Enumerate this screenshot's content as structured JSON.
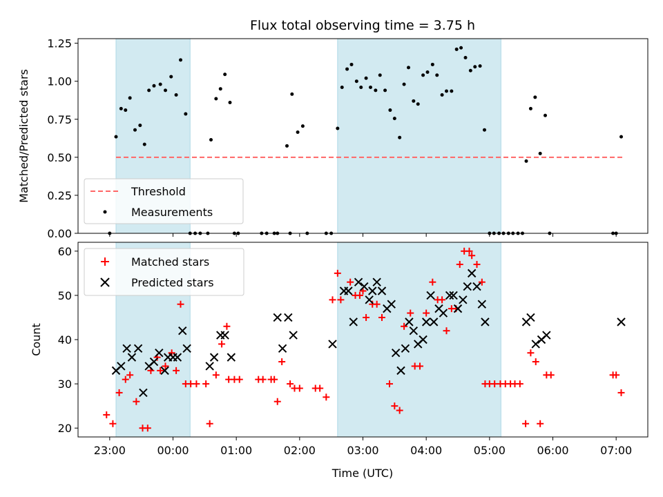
{
  "chart_data": [
    {
      "type": "scatter",
      "title": "Flux total observing time = 3.75 h",
      "xlabel": "",
      "ylabel": "Matched/Predicted stars",
      "x_unit": "hours after 23:00 UTC",
      "xlim": [
        -0.5,
        8.5
      ],
      "ylim": [
        0,
        1.28
      ],
      "yticks": [
        "0.00",
        "0.25",
        "0.50",
        "0.75",
        "1.00",
        "1.25"
      ],
      "yticks_values": [
        0,
        0.25,
        0.5,
        0.75,
        1.0,
        1.25
      ],
      "shaded_intervals": [
        [
          0.1,
          1.27
        ],
        [
          3.6,
          6.18
        ]
      ],
      "shade_color": "#add8e6",
      "threshold": {
        "name": "Threshold",
        "value": 0.5,
        "x_range": [
          0.1,
          8.1
        ],
        "color": "#ff6666"
      },
      "legend": {
        "position": "lower-left",
        "entries": [
          "Threshold",
          "Measurements"
        ]
      },
      "series": [
        {
          "name": "Measurements",
          "color": "#000000",
          "points": [
            [
              0.0,
              0.0
            ],
            [
              0.1,
              0.635
            ],
            [
              0.18,
              0.82
            ],
            [
              0.25,
              0.81
            ],
            [
              0.32,
              0.89
            ],
            [
              0.4,
              0.68
            ],
            [
              0.48,
              0.71
            ],
            [
              0.55,
              0.585
            ],
            [
              0.62,
              0.94
            ],
            [
              0.7,
              0.97
            ],
            [
              0.8,
              0.98
            ],
            [
              0.88,
              0.94
            ],
            [
              0.97,
              1.03
            ],
            [
              1.05,
              0.91
            ],
            [
              1.12,
              1.14
            ],
            [
              1.2,
              0.785
            ],
            [
              1.27,
              0.0
            ],
            [
              1.35,
              0.0
            ],
            [
              1.43,
              0.0
            ],
            [
              1.55,
              0.0
            ],
            [
              1.6,
              0.615
            ],
            [
              1.68,
              0.885
            ],
            [
              1.75,
              0.95
            ],
            [
              1.82,
              1.045
            ],
            [
              1.9,
              0.86
            ],
            [
              1.97,
              0.0
            ],
            [
              2.03,
              0.0
            ],
            [
              2.4,
              0.0
            ],
            [
              2.48,
              0.0
            ],
            [
              2.6,
              0.0
            ],
            [
              2.65,
              0.0
            ],
            [
              2.8,
              0.575
            ],
            [
              2.85,
              0.0
            ],
            [
              2.88,
              0.915
            ],
            [
              2.97,
              0.665
            ],
            [
              3.05,
              0.705
            ],
            [
              3.12,
              0.0
            ],
            [
              3.42,
              0.0
            ],
            [
              3.5,
              0.0
            ],
            [
              3.6,
              0.69
            ],
            [
              3.67,
              0.96
            ],
            [
              3.75,
              1.08
            ],
            [
              3.82,
              1.11
            ],
            [
              3.9,
              1.0
            ],
            [
              3.97,
              0.96
            ],
            [
              4.05,
              1.02
            ],
            [
              4.12,
              0.96
            ],
            [
              4.2,
              0.94
            ],
            [
              4.27,
              1.04
            ],
            [
              4.35,
              0.94
            ],
            [
              4.43,
              0.81
            ],
            [
              4.5,
              0.755
            ],
            [
              4.58,
              0.63
            ],
            [
              4.65,
              0.98
            ],
            [
              4.72,
              1.09
            ],
            [
              4.8,
              0.87
            ],
            [
              4.87,
              0.85
            ],
            [
              4.95,
              1.04
            ],
            [
              5.02,
              1.06
            ],
            [
              5.1,
              1.11
            ],
            [
              5.17,
              1.04
            ],
            [
              5.25,
              0.91
            ],
            [
              5.32,
              0.935
            ],
            [
              5.4,
              0.935
            ],
            [
              5.48,
              1.21
            ],
            [
              5.55,
              1.22
            ],
            [
              5.62,
              1.155
            ],
            [
              5.7,
              1.07
            ],
            [
              5.77,
              1.095
            ],
            [
              5.85,
              1.1
            ],
            [
              5.92,
              0.68
            ],
            [
              6.0,
              0.0
            ],
            [
              6.07,
              0.0
            ],
            [
              6.15,
              0.0
            ],
            [
              6.22,
              0.0
            ],
            [
              6.3,
              0.0
            ],
            [
              6.37,
              0.0
            ],
            [
              6.45,
              0.0
            ],
            [
              6.52,
              0.0
            ],
            [
              6.58,
              0.475
            ],
            [
              6.65,
              0.82
            ],
            [
              6.72,
              0.895
            ],
            [
              6.8,
              0.525
            ],
            [
              6.88,
              0.775
            ],
            [
              6.95,
              0.0
            ],
            [
              7.95,
              0.0
            ],
            [
              8.0,
              0.0
            ],
            [
              8.08,
              0.635
            ]
          ]
        }
      ]
    },
    {
      "type": "scatter",
      "title": "",
      "xlabel": "Time (UTC)",
      "ylabel": "Count",
      "x_unit": "hours after 23:00 UTC",
      "xlim": [
        -0.5,
        8.5
      ],
      "ylim": [
        18,
        62
      ],
      "yticks": [
        "20",
        "30",
        "40",
        "50",
        "60"
      ],
      "yticks_values": [
        20,
        30,
        40,
        50,
        60
      ],
      "xticks": [
        "23:00",
        "00:00",
        "01:00",
        "02:00",
        "03:00",
        "04:00",
        "05:00",
        "06:00",
        "07:00"
      ],
      "xticks_values": [
        0,
        1,
        2,
        3,
        4,
        5,
        6,
        7,
        8
      ],
      "shaded_intervals": [
        [
          0.1,
          1.27
        ],
        [
          3.6,
          6.18
        ]
      ],
      "shade_color": "#add8e6",
      "legend": {
        "position": "upper-left",
        "entries": [
          "Matched stars",
          "Predicted stars"
        ]
      },
      "series": [
        {
          "name": "Matched stars",
          "marker": "plus",
          "color": "#ff0000",
          "points": [
            [
              -0.05,
              23
            ],
            [
              0.05,
              21
            ],
            [
              0.15,
              28
            ],
            [
              0.25,
              31
            ],
            [
              0.32,
              32
            ],
            [
              0.42,
              26
            ],
            [
              0.52,
              20
            ],
            [
              0.6,
              20
            ],
            [
              0.65,
              33
            ],
            [
              0.75,
              36
            ],
            [
              0.8,
              33
            ],
            [
              0.88,
              34
            ],
            [
              0.98,
              37
            ],
            [
              1.05,
              33
            ],
            [
              1.12,
              48
            ],
            [
              1.2,
              30
            ],
            [
              1.28,
              30
            ],
            [
              1.37,
              30
            ],
            [
              1.52,
              30
            ],
            [
              1.58,
              21
            ],
            [
              1.68,
              32
            ],
            [
              1.77,
              39
            ],
            [
              1.85,
              43
            ],
            [
              1.88,
              31
            ],
            [
              1.97,
              31
            ],
            [
              2.05,
              31
            ],
            [
              2.35,
              31
            ],
            [
              2.42,
              31
            ],
            [
              2.55,
              31
            ],
            [
              2.6,
              31
            ],
            [
              2.65,
              26
            ],
            [
              2.72,
              35
            ],
            [
              2.85,
              30
            ],
            [
              2.92,
              29
            ],
            [
              3.0,
              29
            ],
            [
              3.25,
              29
            ],
            [
              3.32,
              29
            ],
            [
              3.42,
              27
            ],
            [
              3.52,
              49
            ],
            [
              3.6,
              55
            ],
            [
              3.65,
              49
            ],
            [
              3.8,
              53
            ],
            [
              3.88,
              50
            ],
            [
              3.95,
              50
            ],
            [
              4.0,
              51
            ],
            [
              4.05,
              45
            ],
            [
              4.15,
              48
            ],
            [
              4.22,
              48
            ],
            [
              4.3,
              45
            ],
            [
              4.42,
              30
            ],
            [
              4.5,
              25
            ],
            [
              4.58,
              24
            ],
            [
              4.65,
              43
            ],
            [
              4.75,
              46
            ],
            [
              4.82,
              34
            ],
            [
              4.9,
              34
            ],
            [
              5.0,
              46
            ],
            [
              5.1,
              53
            ],
            [
              5.18,
              49
            ],
            [
              5.25,
              49
            ],
            [
              5.32,
              42
            ],
            [
              5.4,
              47
            ],
            [
              5.47,
              47
            ],
            [
              5.53,
              57
            ],
            [
              5.6,
              60
            ],
            [
              5.68,
              60
            ],
            [
              5.72,
              59
            ],
            [
              5.8,
              57
            ],
            [
              5.88,
              53
            ],
            [
              5.93,
              30
            ],
            [
              6.0,
              30
            ],
            [
              6.08,
              30
            ],
            [
              6.17,
              30
            ],
            [
              6.25,
              30
            ],
            [
              6.33,
              30
            ],
            [
              6.4,
              30
            ],
            [
              6.48,
              30
            ],
            [
              6.57,
              21
            ],
            [
              6.65,
              37
            ],
            [
              6.73,
              35
            ],
            [
              6.8,
              21
            ],
            [
              6.9,
              32
            ],
            [
              6.97,
              32
            ],
            [
              7.95,
              32
            ],
            [
              8.0,
              32
            ],
            [
              8.08,
              28
            ]
          ]
        },
        {
          "name": "Predicted stars",
          "marker": "x",
          "color": "#000000",
          "points": [
            [
              0.1,
              33
            ],
            [
              0.18,
              34
            ],
            [
              0.27,
              38
            ],
            [
              0.35,
              36
            ],
            [
              0.45,
              38
            ],
            [
              0.53,
              28
            ],
            [
              0.62,
              34
            ],
            [
              0.7,
              35
            ],
            [
              0.78,
              37
            ],
            [
              0.87,
              33
            ],
            [
              0.92,
              36
            ],
            [
              1.0,
              36
            ],
            [
              1.07,
              36
            ],
            [
              1.15,
              42
            ],
            [
              1.22,
              38
            ],
            [
              1.58,
              34
            ],
            [
              1.65,
              36
            ],
            [
              1.75,
              41
            ],
            [
              1.82,
              41
            ],
            [
              1.92,
              36
            ],
            [
              2.65,
              45
            ],
            [
              2.73,
              38
            ],
            [
              2.82,
              45
            ],
            [
              2.9,
              41
            ],
            [
              3.52,
              39
            ],
            [
              3.7,
              51
            ],
            [
              3.77,
              51
            ],
            [
              3.85,
              44
            ],
            [
              3.93,
              53
            ],
            [
              4.02,
              52
            ],
            [
              4.1,
              49
            ],
            [
              4.15,
              51
            ],
            [
              4.22,
              53
            ],
            [
              4.3,
              51
            ],
            [
              4.38,
              47
            ],
            [
              4.45,
              48
            ],
            [
              4.52,
              37
            ],
            [
              4.6,
              33
            ],
            [
              4.67,
              38
            ],
            [
              4.73,
              44
            ],
            [
              4.8,
              42
            ],
            [
              4.87,
              39
            ],
            [
              4.95,
              40
            ],
            [
              5.0,
              44
            ],
            [
              5.07,
              50
            ],
            [
              5.12,
              44
            ],
            [
              5.2,
              47
            ],
            [
              5.27,
              46
            ],
            [
              5.37,
              50
            ],
            [
              5.43,
              50
            ],
            [
              5.5,
              47
            ],
            [
              5.58,
              49
            ],
            [
              5.65,
              52
            ],
            [
              5.72,
              55
            ],
            [
              5.8,
              52
            ],
            [
              5.88,
              48
            ],
            [
              5.93,
              44
            ],
            [
              6.58,
              44
            ],
            [
              6.65,
              45
            ],
            [
              6.73,
              39
            ],
            [
              6.82,
              40
            ],
            [
              6.9,
              41
            ],
            [
              8.08,
              44
            ]
          ]
        }
      ]
    }
  ]
}
